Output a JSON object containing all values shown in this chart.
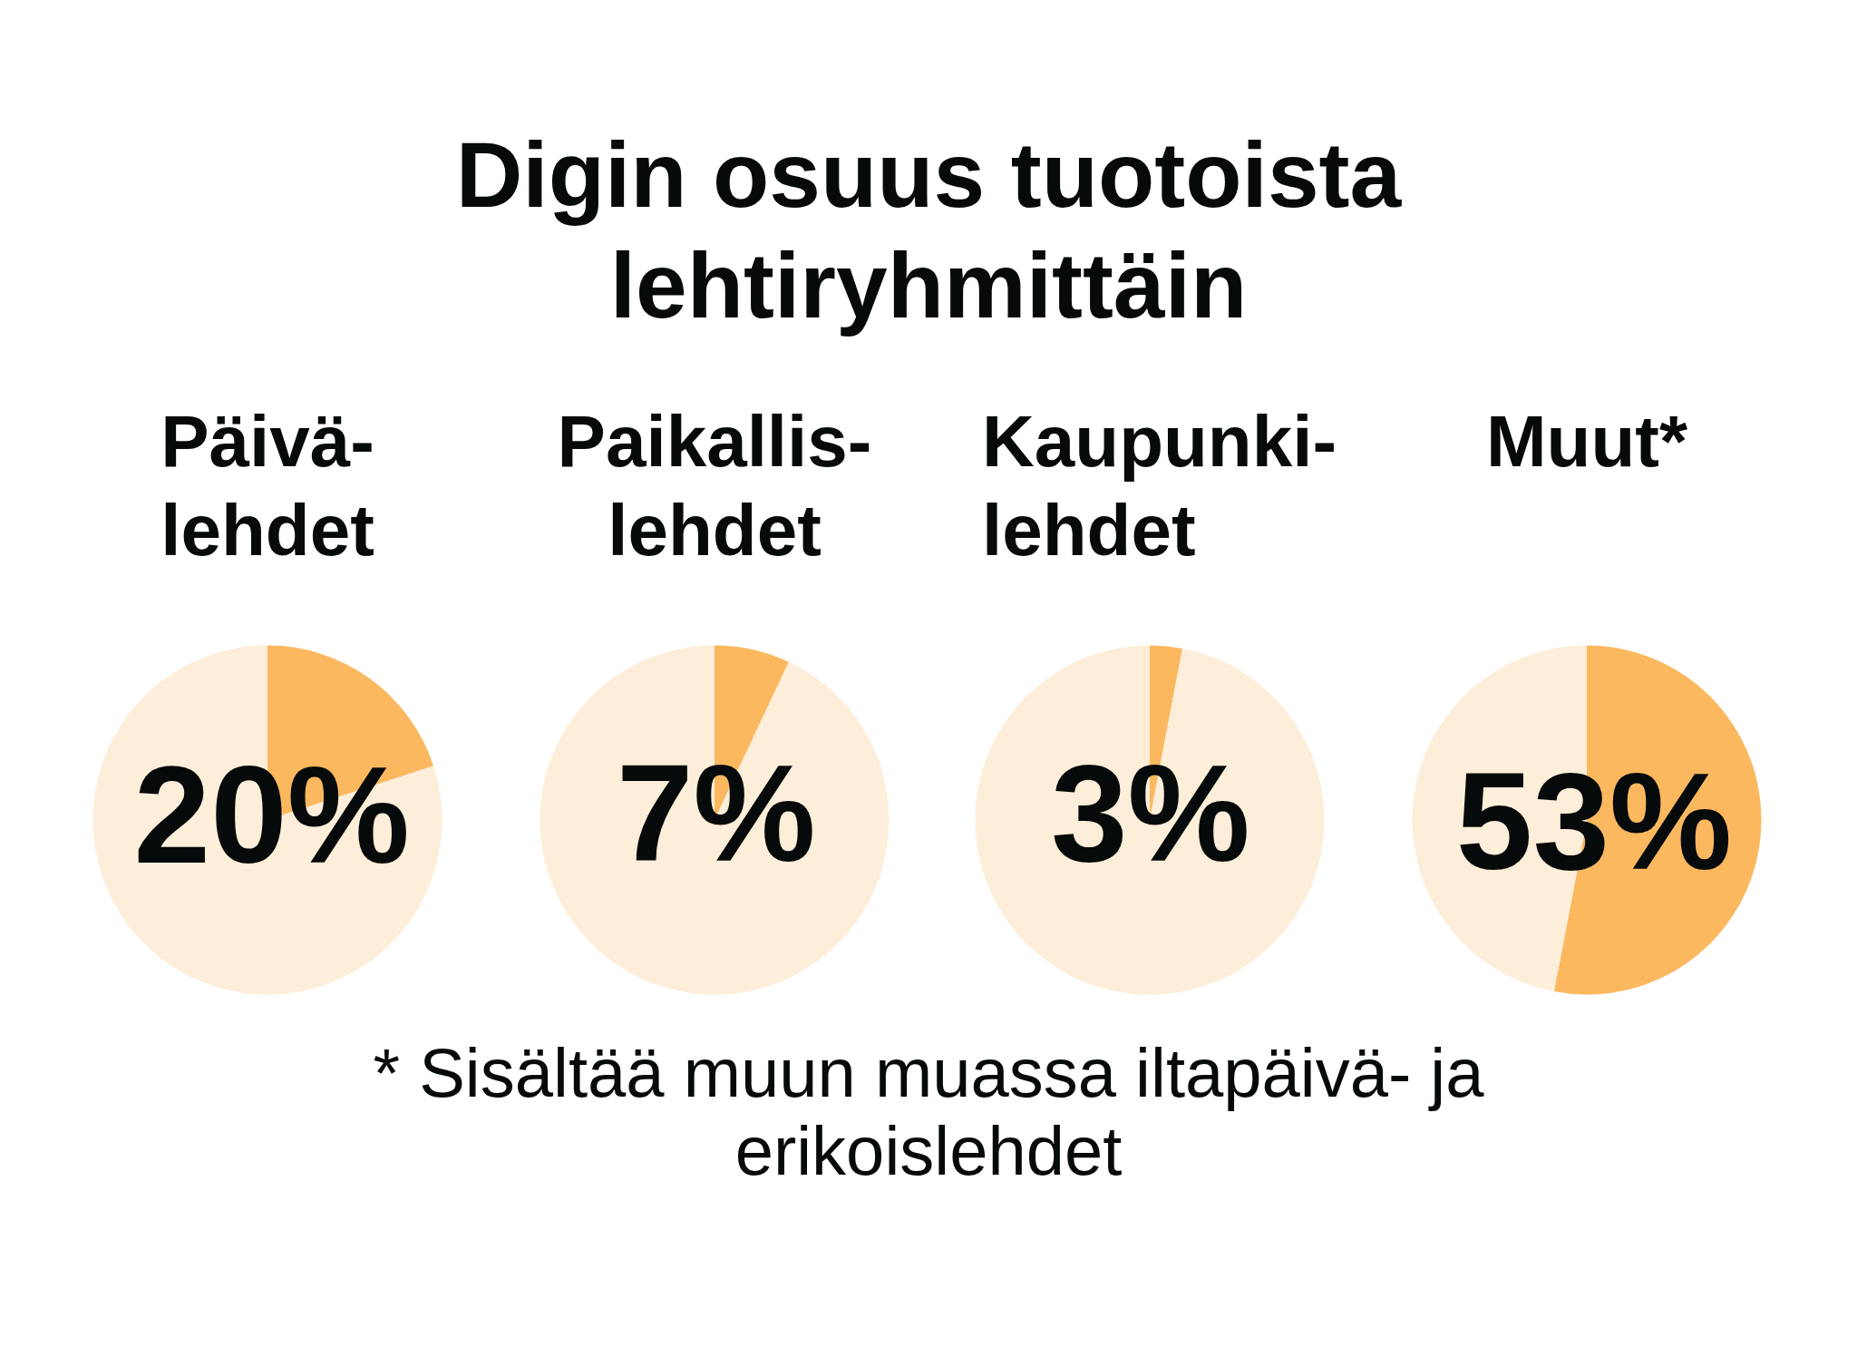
{
  "chart_data": [
    {
      "type": "other",
      "title": "Digin osuus tuotoista lehtiryhmittäin"
    },
    {
      "type": "pie",
      "title": "Päivä-\nlehdet",
      "categories": [
        null,
        null
      ],
      "values": [
        20,
        80
      ],
      "colors": [
        "#fbb85f",
        "#fdeed9"
      ],
      "value_labels": [
        "20%",
        null
      ]
    },
    {
      "type": "pie",
      "title": "Paikallis-\nlehdet",
      "categories": [
        null,
        null
      ],
      "values": [
        7,
        93
      ],
      "colors": [
        "#fbb85f",
        "#fdeed9"
      ],
      "value_labels": [
        "7%",
        null
      ]
    },
    {
      "type": "pie",
      "title": "Kaupunki-\nlehdet",
      "categories": [
        null,
        null
      ],
      "values": [
        3,
        97
      ],
      "colors": [
        "#fbb85f",
        "#fdeed9"
      ],
      "value_labels": [
        "3%",
        null
      ]
    },
    {
      "type": "pie",
      "title": "Muut*",
      "categories": [
        null,
        null
      ],
      "values": [
        53,
        47
      ],
      "colors": [
        "#fbb85f",
        "#fdeed9"
      ],
      "value_labels": [
        "53%",
        null
      ]
    },
    {
      "type": "other",
      "annotations": [
        "* Sisältää muun muassa iltapäivä- ja erikoislehdet"
      ]
    }
  ]
}
